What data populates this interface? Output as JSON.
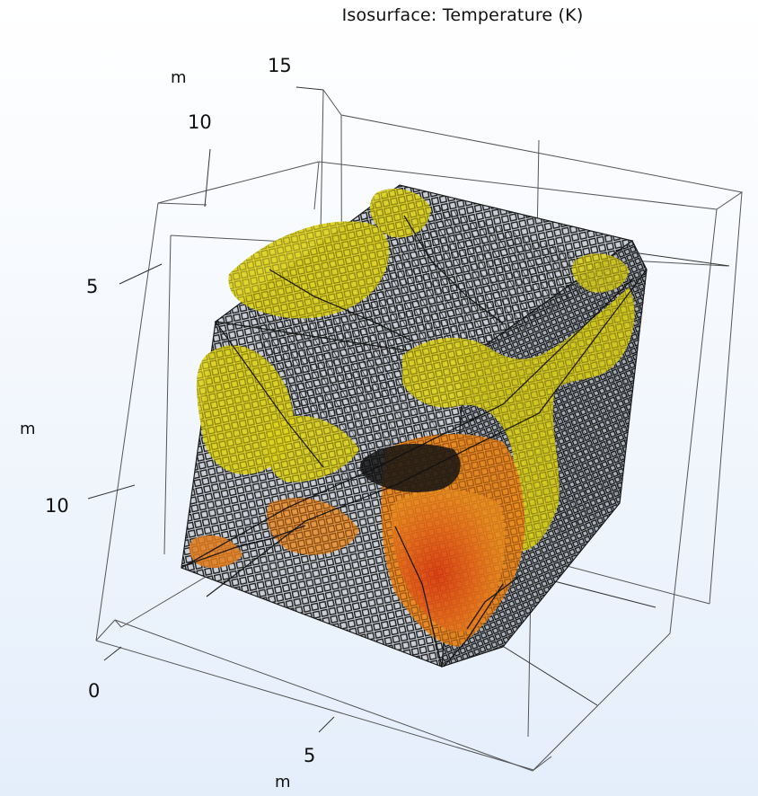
{
  "plot": {
    "title": "Isosurface: Temperature (K)"
  },
  "axes": {
    "z_unit": "m",
    "z_ticks": [
      "15",
      "10"
    ],
    "y_unit": "m",
    "y_ticks": [
      "5",
      "10"
    ],
    "x_unit": "m",
    "x_ticks": [
      "0",
      "5"
    ]
  },
  "colors": {
    "background_top": "#ffffff",
    "background_bottom": "#e4eefb",
    "box_line": "#555555",
    "mesh_edge": "#1a1a1a",
    "mesh_gap": "#cfd3da",
    "iso_yellow": "#d8ce16",
    "iso_yellow_dark": "#9e9410",
    "iso_orange": "#e8861c",
    "iso_red": "#d63a12"
  }
}
